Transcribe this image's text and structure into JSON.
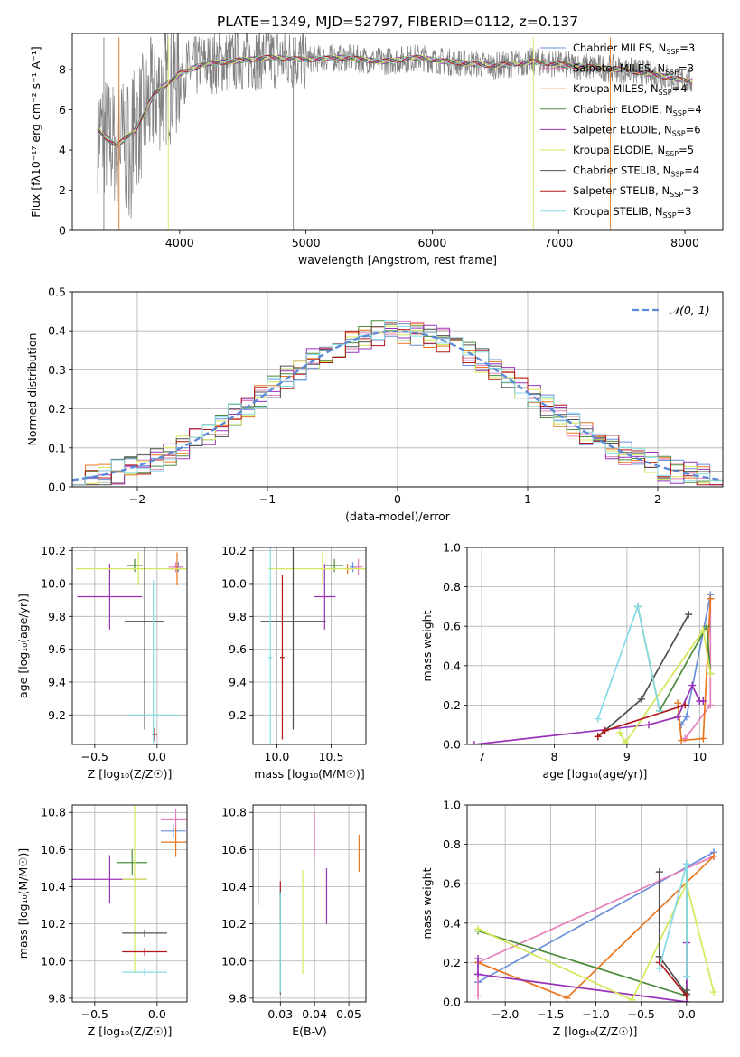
{
  "title": "PLATE=1349, MJD=52797, FIBERID=0112, z=0.137",
  "colors": {
    "Chabrier MILES": "#6a8fdc",
    "Salpeter MILES": "#e57fb9",
    "Kroupa MILES": "#e8771f",
    "Chabrier ELODIE": "#4a8a3a",
    "Salpeter ELODIE": "#9932b8",
    "Kroupa ELODIE": "#d4e85a",
    "Chabrier STELIB": "#505050",
    "Salpeter STELIB": "#b01818",
    "Kroupa STELIB": "#86dbe6",
    "data": "#808080",
    "normal": "#5b8ad6"
  },
  "chart_data": [
    {
      "id": "spectrum",
      "type": "line",
      "xlabel": "wavelength [Angstrom, rest frame]",
      "ylabel": "Flux [fλ10⁻¹⁷ erg cm⁻² s⁻¹ A⁻¹]",
      "xlim": [
        3150,
        8300
      ],
      "ylim": [
        0,
        9.8
      ],
      "xticks": [
        4000,
        5000,
        6000,
        7000,
        8000
      ],
      "yticks": [
        0,
        2,
        4,
        6,
        8
      ],
      "legend": [
        "Chabrier MILES, NSSP=3",
        "Salpeter MILES, NSSP=3",
        "Kroupa MILES, NSSP=4",
        "Chabrier ELODIE, NSSP=4",
        "Salpeter ELODIE, NSSP=6",
        "Kroupa ELODIE, NSSP=5",
        "Chabrier STELIB, NSSP=4",
        "Salpeter STELIB, NSSP=3",
        "Kroupa STELIB, NSSP=3"
      ],
      "legend_placement": "right",
      "continuum": [
        [
          3350,
          5.0
        ],
        [
          3500,
          4.2
        ],
        [
          3650,
          5.0
        ],
        [
          3800,
          6.8
        ],
        [
          4000,
          7.8
        ],
        [
          4200,
          8.3
        ],
        [
          4400,
          8.4
        ],
        [
          4700,
          8.6
        ],
        [
          5000,
          8.5
        ],
        [
          5300,
          8.6
        ],
        [
          5600,
          8.4
        ],
        [
          5900,
          8.6
        ],
        [
          6100,
          8.4
        ],
        [
          6500,
          8.2
        ],
        [
          6800,
          8.4
        ],
        [
          7100,
          8.2
        ],
        [
          7500,
          8.0
        ],
        [
          7800,
          7.7
        ],
        [
          8050,
          7.4
        ]
      ],
      "grid": false
    },
    {
      "id": "residuals",
      "type": "area",
      "xlabel": "(data-model)/error",
      "ylabel": "Normed distribution",
      "xlim": [
        -2.5,
        2.5
      ],
      "ylim": [
        0,
        0.5
      ],
      "xticks": [
        -2,
        -1,
        0,
        1,
        2
      ],
      "yticks": [
        0.0,
        0.1,
        0.2,
        0.3,
        0.4,
        0.5
      ],
      "legend": [
        "𝒩(0, 1)"
      ],
      "legend_placement": "top-right",
      "grid": true,
      "bin_width": 0.1,
      "normal_curve": {
        "mean": 0,
        "sd": 1
      }
    },
    {
      "id": "age-vs-Z",
      "type": "scatter",
      "xlabel": "Z [log₁₀(Z/Z☉)]",
      "ylabel": "age  [log₁₀(age/yr)]",
      "xlim": [
        -0.68,
        0.24
      ],
      "ylim": [
        9.02,
        10.22
      ],
      "xticks": [
        -0.5,
        0.0
      ],
      "yticks": [
        9.2,
        9.4,
        9.6,
        9.8,
        10.0,
        10.2
      ],
      "grid": true,
      "points": [
        {
          "m": "Chabrier MILES",
          "x": 0.17,
          "y": 10.1,
          "ex": 0.04,
          "ey": 0.03
        },
        {
          "m": "Salpeter MILES",
          "x": 0.15,
          "y": 10.1,
          "ex": 0.06,
          "ey": 0.03
        },
        {
          "m": "Kroupa MILES",
          "x": 0.16,
          "y": 10.09,
          "ex": 0.05,
          "ey": 0.1
        },
        {
          "m": "Chabrier ELODIE",
          "x": -0.18,
          "y": 10.11,
          "ex": 0.06,
          "ey": 0.04
        },
        {
          "m": "Salpeter ELODIE",
          "x": -0.38,
          "y": 9.92,
          "ex": 0.26,
          "ey": 0.2
        },
        {
          "m": "Kroupa ELODIE",
          "x": -0.15,
          "y": 10.09,
          "ex": 0.5,
          "ey": 0.1
        },
        {
          "m": "Chabrier STELIB",
          "x": -0.1,
          "y": 9.77,
          "ex": 0.16,
          "ey": 0.66
        },
        {
          "m": "Salpeter STELIB",
          "x": -0.02,
          "y": 9.08,
          "ex": 0.02,
          "ey": 0.04
        },
        {
          "m": "Kroupa STELIB",
          "x": -0.03,
          "y": 9.2,
          "ex": 0.2,
          "ey": 0.82
        }
      ]
    },
    {
      "id": "age-vs-mass",
      "type": "scatter",
      "xlabel": "mass [log₁₀(M/M☉)]",
      "ylabel": "",
      "xlim": [
        9.78,
        10.82
      ],
      "ylim": [
        9.02,
        10.22
      ],
      "xticks": [
        10.0,
        10.5
      ],
      "yticks": [
        9.2,
        9.4,
        9.6,
        9.8,
        10.0,
        10.2
      ],
      "grid": true,
      "points": [
        {
          "m": "Chabrier MILES",
          "x": 10.7,
          "y": 10.1,
          "ex": 0.03,
          "ey": 0.03
        },
        {
          "m": "Salpeter MILES",
          "x": 10.75,
          "y": 10.1,
          "ex": 0.04,
          "ey": 0.05
        },
        {
          "m": "Kroupa MILES",
          "x": 10.65,
          "y": 10.09,
          "ex": 0.03,
          "ey": 0.03
        },
        {
          "m": "Chabrier ELODIE",
          "x": 10.53,
          "y": 10.11,
          "ex": 0.08,
          "ey": 0.04
        },
        {
          "m": "Salpeter ELODIE",
          "x": 10.44,
          "y": 9.92,
          "ex": 0.1,
          "ey": 0.2
        },
        {
          "m": "Kroupa ELODIE",
          "x": 10.42,
          "y": 10.09,
          "ex": 0.5,
          "ey": 0.1
        },
        {
          "m": "Chabrier STELIB",
          "x": 10.15,
          "y": 9.77,
          "ex": 0.3,
          "ey": 0.66
        },
        {
          "m": "Salpeter STELIB",
          "x": 10.05,
          "y": 9.55,
          "ex": 0.02,
          "ey": 0.5
        },
        {
          "m": "Kroupa STELIB",
          "x": 9.94,
          "y": 9.55,
          "ex": 0.02,
          "ey": 0.9
        }
      ]
    },
    {
      "id": "weight-vs-age",
      "type": "line",
      "xlabel": "age  [log₁₀(age/yr)]",
      "ylabel": "mass weight",
      "xlim": [
        6.8,
        10.32
      ],
      "ylim": [
        0,
        1.0
      ],
      "xticks": [
        7,
        8,
        9,
        10
      ],
      "yticks": [
        0.0,
        0.2,
        0.4,
        0.6,
        0.8,
        1.0
      ],
      "grid": true,
      "series": [
        {
          "m": "Chabrier MILES",
          "x": [
            9.75,
            9.82,
            10.15
          ],
          "y": [
            0.1,
            0.14,
            0.76
          ]
        },
        {
          "m": "Salpeter MILES",
          "x": [
            9.8,
            10.15,
            10.15
          ],
          "y": [
            0.03,
            0.2,
            0.74
          ]
        },
        {
          "m": "Kroupa MILES",
          "x": [
            9.7,
            9.75,
            10.05,
            10.15
          ],
          "y": [
            0.21,
            0.02,
            0.03,
            0.74
          ]
        },
        {
          "m": "Chabrier ELODIE",
          "x": [
            9.15,
            9.45,
            10.1,
            10.15
          ],
          "y": [
            0.7,
            0.17,
            0.6,
            0.36
          ]
        },
        {
          "m": "Salpeter ELODIE",
          "x": [
            6.9,
            9.3,
            9.7,
            9.9,
            10.0,
            10.05
          ],
          "y": [
            0.0,
            0.1,
            0.14,
            0.3,
            0.22,
            0.22
          ]
        },
        {
          "m": "Kroupa ELODIE",
          "x": [
            8.9,
            8.98,
            10.05,
            10.15
          ],
          "y": [
            0.06,
            0.01,
            0.58,
            0.36
          ]
        },
        {
          "m": "Chabrier STELIB",
          "x": [
            8.6,
            9.2,
            9.85
          ],
          "y": [
            0.04,
            0.23,
            0.66
          ]
        },
        {
          "m": "Salpeter STELIB",
          "x": [
            8.6,
            8.7,
            9.8
          ],
          "y": [
            0.04,
            0.07,
            0.2
          ]
        },
        {
          "m": "Kroupa STELIB",
          "x": [
            8.6,
            9.15,
            9.45
          ],
          "y": [
            0.13,
            0.7,
            0.17
          ]
        }
      ]
    },
    {
      "id": "mass-vs-Z",
      "type": "scatter",
      "xlabel": "Z [log₁₀(Z/Z☉)]",
      "ylabel": "mass [log₁₀(M/M☉)]",
      "xlim": [
        -0.68,
        0.24
      ],
      "ylim": [
        9.78,
        10.84
      ],
      "xticks": [
        -0.5,
        0.0
      ],
      "yticks": [
        9.8,
        10.0,
        10.2,
        10.4,
        10.6,
        10.8
      ],
      "grid": true,
      "points": [
        {
          "m": "Salpeter MILES",
          "x": 0.15,
          "y": 10.76,
          "ex": 0.12,
          "ey": 0.06
        },
        {
          "m": "Chabrier MILES",
          "x": 0.13,
          "y": 10.7,
          "ex": 0.1,
          "ey": 0.04
        },
        {
          "m": "Kroupa MILES",
          "x": 0.15,
          "y": 10.64,
          "ex": 0.12,
          "ey": 0.08
        },
        {
          "m": "Chabrier ELODIE",
          "x": -0.2,
          "y": 10.53,
          "ex": 0.12,
          "ey": 0.07
        },
        {
          "m": "Salpeter ELODIE",
          "x": -0.38,
          "y": 10.44,
          "ex": 0.3,
          "ey": 0.13
        },
        {
          "m": "Kroupa ELODIE",
          "x": -0.18,
          "y": 10.44,
          "ex": 0.1,
          "ey": 0.5
        },
        {
          "m": "Chabrier STELIB",
          "x": -0.1,
          "y": 10.15,
          "ex": 0.18,
          "ey": 0.02
        },
        {
          "m": "Salpeter STELIB",
          "x": -0.1,
          "y": 10.05,
          "ex": 0.18,
          "ey": 0.02
        },
        {
          "m": "Kroupa STELIB",
          "x": -0.1,
          "y": 9.94,
          "ex": 0.18,
          "ey": 0.02
        }
      ]
    },
    {
      "id": "mass-vs-EBV",
      "type": "scatter",
      "xlabel": "E(B-V)",
      "ylabel": "",
      "xlim": [
        0.022,
        0.055
      ],
      "ylim": [
        9.78,
        10.84
      ],
      "xticks": [
        0.03,
        0.04,
        0.05
      ],
      "yticks": [
        9.8,
        10.0,
        10.2,
        10.4,
        10.6,
        10.8
      ],
      "grid": true,
      "points": [
        {
          "m": "Salpeter MILES",
          "x": 0.04,
          "y": 10.68,
          "ex": 0,
          "ey": 0.12
        },
        {
          "m": "Kroupa MILES",
          "x": 0.053,
          "y": 10.58,
          "ex": 0,
          "ey": 0.1
        },
        {
          "m": "Chabrier ELODIE",
          "x": 0.0235,
          "y": 10.45,
          "ex": 0,
          "ey": 0.15
        },
        {
          "m": "Salpeter ELODIE",
          "x": 0.0435,
          "y": 10.35,
          "ex": 0,
          "ey": 0.15
        },
        {
          "m": "Kroupa ELODIE",
          "x": 0.0365,
          "y": 10.21,
          "ex": 0,
          "ey": 0.28
        },
        {
          "m": "Salpeter STELIB",
          "x": 0.03,
          "y": 10.33,
          "ex": 0,
          "ey": 0.1
        },
        {
          "m": "Chabrier STELIB",
          "x": 0.03,
          "y": 10.1,
          "ex": 0,
          "ey": 0.28
        },
        {
          "m": "Kroupa STELIB",
          "x": 0.03,
          "y": 10.1,
          "ex": 0,
          "ey": 0.27
        }
      ]
    },
    {
      "id": "weight-vs-Z",
      "type": "line",
      "xlabel": "Z [log₁₀(Z/Z☉)]",
      "ylabel": "mass weight",
      "xlim": [
        -2.42,
        0.4
      ],
      "ylim": [
        0,
        1.0
      ],
      "xticks": [
        -2.0,
        -1.5,
        -1.0,
        -0.5,
        0.0
      ],
      "yticks": [
        0.0,
        0.2,
        0.4,
        0.6,
        0.8,
        1.0
      ],
      "grid": true,
      "series": [
        {
          "m": "Chabrier MILES",
          "x": [
            -2.3,
            -2.3,
            0.3
          ],
          "y": [
            0.14,
            0.1,
            0.76
          ]
        },
        {
          "m": "Salpeter MILES",
          "x": [
            -2.3,
            -2.3,
            0.3
          ],
          "y": [
            0.03,
            0.2,
            0.74
          ]
        },
        {
          "m": "Kroupa MILES",
          "x": [
            -2.3,
            -1.32,
            0.3
          ],
          "y": [
            0.2,
            0.02,
            0.74
          ]
        },
        {
          "m": "Chabrier ELODIE",
          "x": [
            -2.3,
            0.0,
            0.0
          ],
          "y": [
            0.36,
            0.03,
            0.7
          ]
        },
        {
          "m": "Salpeter ELODIE",
          "x": [
            -2.3,
            -2.3,
            0.0,
            0.0
          ],
          "y": [
            0.22,
            0.14,
            0.0,
            0.3
          ]
        },
        {
          "m": "Kroupa ELODIE",
          "x": [
            -2.3,
            -0.6,
            0.0,
            0.3
          ],
          "y": [
            0.37,
            0.01,
            0.6,
            0.05
          ]
        },
        {
          "m": "Chabrier STELIB",
          "x": [
            -0.3,
            -0.3,
            0.0,
            0.0
          ],
          "y": [
            0.66,
            0.23,
            0.04,
            0.06
          ]
        },
        {
          "m": "Salpeter STELIB",
          "x": [
            -0.3,
            0.0
          ],
          "y": [
            0.2,
            0.03
          ]
        },
        {
          "m": "Kroupa STELIB",
          "x": [
            -0.3,
            0.0,
            0.0
          ],
          "y": [
            0.17,
            0.7,
            0.13
          ]
        }
      ]
    }
  ]
}
